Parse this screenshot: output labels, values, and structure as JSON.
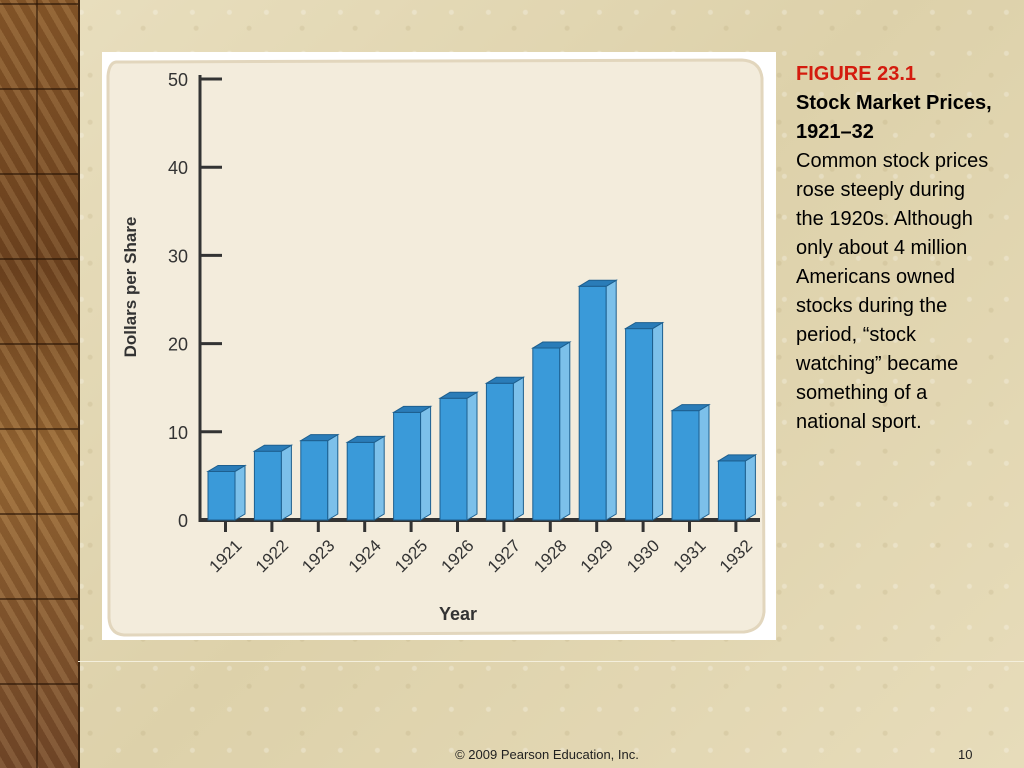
{
  "caption": {
    "figure": "FIGURE 23.1",
    "title": "Stock Market Prices, 1921–32",
    "body": "Common stock prices rose steeply during the 1920s. Although only about 4 million Americans owned stocks during the period, “stock watching” became something of a national sport."
  },
  "footer": {
    "copyright": "© 2009 Pearson Education, Inc.",
    "page": "10"
  },
  "colors": {
    "bar_front": "#3a9ad9",
    "bar_side": "#7cc0ea",
    "bar_top": "#2a7cb8",
    "panel_bg": "#f3ecdc",
    "caption_red": "#d41b0e"
  },
  "chart_data": {
    "type": "bar",
    "categories": [
      "1921",
      "1922",
      "1923",
      "1924",
      "1925",
      "1926",
      "1927",
      "1928",
      "1929",
      "1930",
      "1931",
      "1932"
    ],
    "values": [
      5.5,
      7.8,
      9.0,
      8.8,
      12.2,
      13.8,
      15.5,
      19.5,
      26.5,
      21.7,
      12.4,
      6.7
    ],
    "xlabel": "Year",
    "ylabel": "Dollars per Share",
    "ylim": [
      0,
      50
    ],
    "yticks": [
      "0",
      "10",
      "20",
      "30",
      "40",
      "50"
    ],
    "grid": false,
    "legend": "none"
  }
}
